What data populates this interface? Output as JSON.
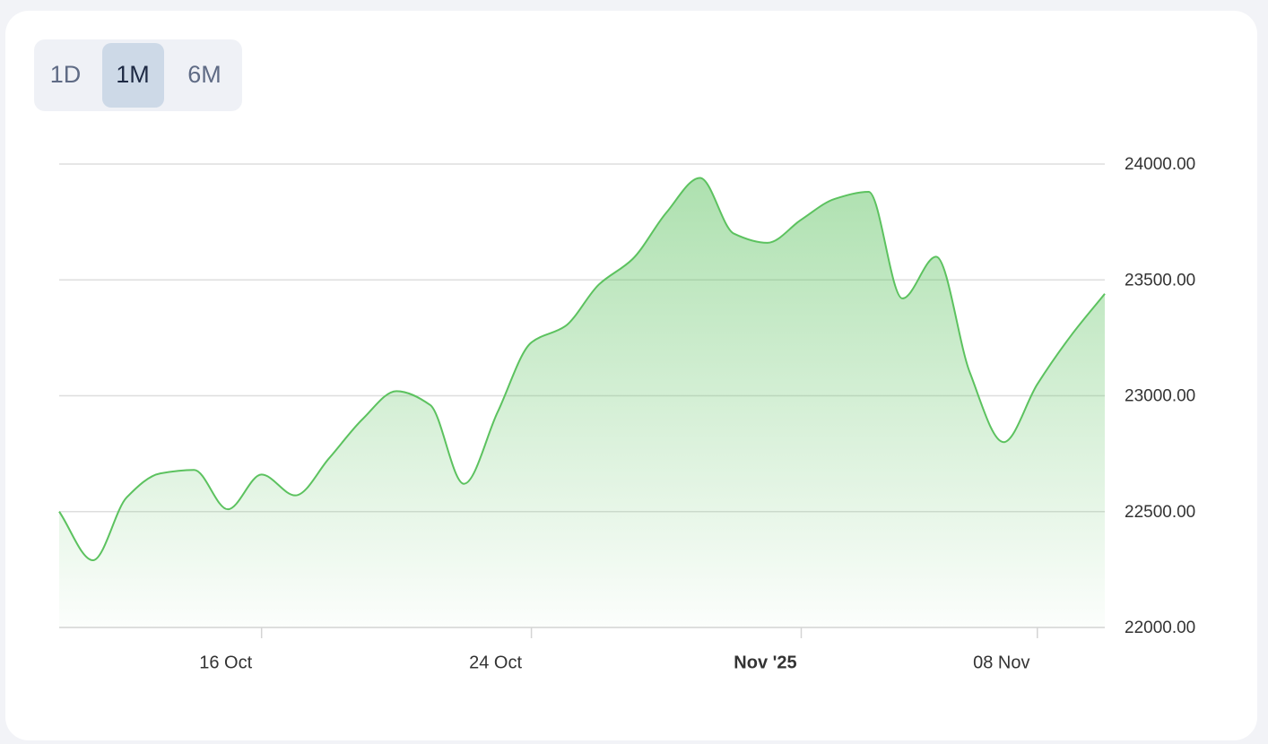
{
  "range_buttons": [
    "1D",
    "1M",
    "6M"
  ],
  "selected_range": 1,
  "chart_data": {
    "type": "area",
    "x": [
      "2025-10-10",
      "2025-10-11",
      "2025-10-12",
      "2025-10-13",
      "2025-10-14",
      "2025-10-15",
      "2025-10-16",
      "2025-10-17",
      "2025-10-18",
      "2025-10-19",
      "2025-10-20",
      "2025-10-21",
      "2025-10-22",
      "2025-10-23",
      "2025-10-24",
      "2025-10-25",
      "2025-10-26",
      "2025-10-27",
      "2025-10-28",
      "2025-10-29",
      "2025-10-30",
      "2025-10-31",
      "2025-11-01",
      "2025-11-02",
      "2025-11-03",
      "2025-11-04",
      "2025-11-05",
      "2025-11-06",
      "2025-11-07",
      "2025-11-08",
      "2025-11-09",
      "2025-11-10"
    ],
    "values": [
      22500,
      22290,
      22561,
      22665,
      22680,
      22510,
      22660,
      22570,
      22730,
      22900,
      23020,
      22960,
      22620,
      22930,
      23230,
      23300,
      23480,
      23590,
      23790,
      23940,
      23700,
      23660,
      23760,
      23850,
      23880,
      23420,
      23600,
      23100,
      22800,
      23050,
      23260,
      23440
    ],
    "color": "#5cc25f",
    "xlim": [
      "2025-10-10",
      "2025-11-10"
    ],
    "xticks": [
      {
        "value": "2025-10-16",
        "label": "16 Oct"
      },
      {
        "value": "2025-10-24",
        "label": "24 Oct"
      },
      {
        "value": "2025-11-01",
        "label": "Nov '25"
      },
      {
        "value": "2025-11-08",
        "label": "08 Nov"
      }
    ],
    "ylim": [
      22000,
      24000
    ],
    "yticks": [
      {
        "value": 22000,
        "label": "22000.00"
      },
      {
        "value": 22500,
        "label": "22500.00"
      },
      {
        "value": 23000,
        "label": "23000.00"
      },
      {
        "value": 23500,
        "label": "23500.00"
      },
      {
        "value": 24000,
        "label": "24000.00"
      }
    ],
    "grid": true
  }
}
